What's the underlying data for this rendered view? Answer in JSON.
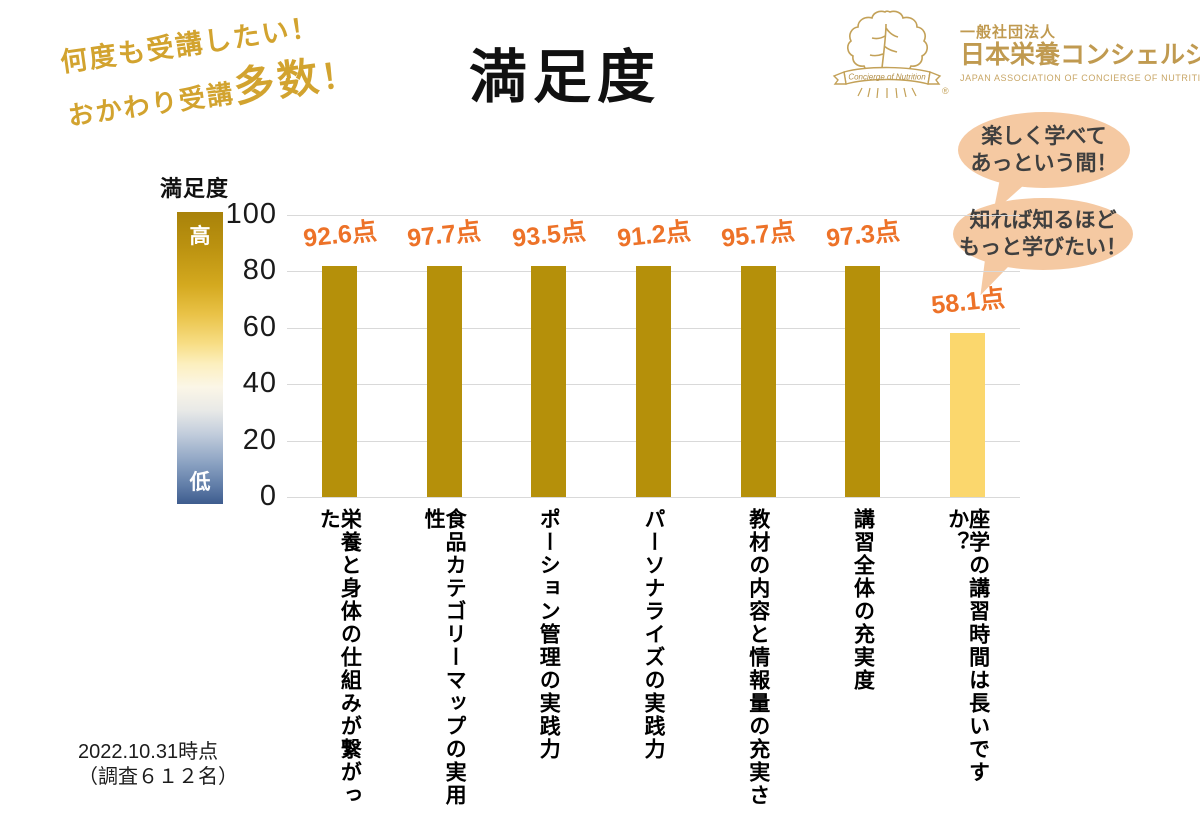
{
  "header": {
    "title": "満足度"
  },
  "tagline": {
    "line1": "何度も受講したい！",
    "line2_prefix": "おかわり受講",
    "line2_emphasis": "多数",
    "line2_suffix": "！"
  },
  "logo": {
    "org_type": "一般社団法人",
    "org_name": "日本栄養コンシェルジュ協会",
    "org_name_en": "JAPAN ASSOCIATION OF CONCIERGE OF NUTRITION",
    "emblem_text": "Concierge of Nutrition",
    "registered_mark": "®",
    "gold_color": "#c09a50"
  },
  "bubbles": [
    {
      "line1": "楽しく学べて",
      "line2": "あっという間！"
    },
    {
      "line1": "知れば知るほど",
      "line2": "もっと学びたい！"
    }
  ],
  "footnote": {
    "line1": "2022.10.31時点",
    "line2": "（調査６１２名）"
  },
  "chart_data": {
    "type": "bar",
    "title": "満足度",
    "categories": [
      "栄養と身体の仕組みが繋がった",
      "食品カテゴリーマップの実用性",
      "ポーション管理の実践力",
      "パーソナライズの実践力",
      "教材の内容と情報量の充実さ",
      "講習全体の充実度",
      "座学の講習時間は長いですか？"
    ],
    "values": [
      92.6,
      97.7,
      93.5,
      91.2,
      95.7,
      97.3,
      58.1
    ],
    "value_labels": [
      "92.6点",
      "97.7点",
      "93.5点",
      "91.2点",
      "95.7点",
      "97.3点",
      "58.1点"
    ],
    "bar_colors": [
      "#b5900a",
      "#b5900a",
      "#b5900a",
      "#b5900a",
      "#b5900a",
      "#b5900a",
      "#fbd76d"
    ],
    "value_label_color": "#ed7228",
    "xlabel": "",
    "ylabel": "",
    "ylim": [
      0,
      100
    ],
    "yticks": [
      0,
      20,
      40,
      60,
      80,
      100
    ],
    "grid": true,
    "legend_position": "left-colorbar",
    "colorbar": {
      "label": "満足度",
      "high_label": "高",
      "low_label": "低",
      "high_color": "#a8820a",
      "mid_color": "#fbf6e7",
      "low_color": "#3e5c8e"
    }
  }
}
